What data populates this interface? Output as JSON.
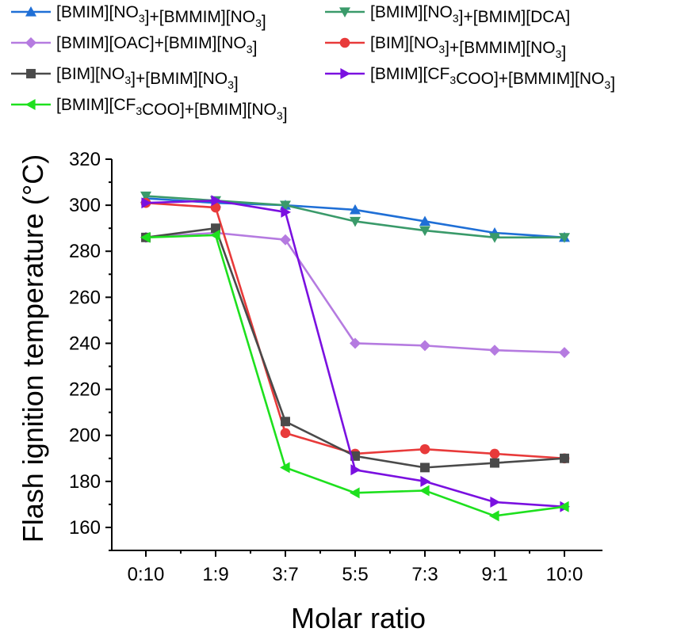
{
  "chart_data": {
    "type": "line",
    "xlabel": "Molar ratio",
    "ylabel": "Flash ignition temperature (°C)",
    "categories": [
      "0:10",
      "1:9",
      "3:7",
      "5:5",
      "7:3",
      "9:1",
      "10:0"
    ],
    "ylim": [
      150,
      320
    ],
    "yticks": [
      160,
      180,
      200,
      220,
      240,
      260,
      280,
      300,
      320
    ],
    "grid": false,
    "legend_position": "top",
    "series": [
      {
        "name": "[BMIM][NO3]+[BMMIM][NO3]",
        "color": "#1f6fd6",
        "marker": "triangle-up",
        "values": [
          303,
          301,
          300,
          298,
          293,
          288,
          286
        ]
      },
      {
        "name": "[BMIM][NO3]+[BMIM][DCA]",
        "color": "#3a9a6a",
        "marker": "triangle-down",
        "values": [
          304,
          302,
          300,
          293,
          289,
          286,
          286
        ]
      },
      {
        "name": "[BMIM][OAC]+[BMIM][NO3]",
        "color": "#b57be0",
        "marker": "diamond",
        "values": [
          286,
          288,
          285,
          240,
          239,
          237,
          236
        ]
      },
      {
        "name": "[BIM][NO3]+[BMMIM][NO3]",
        "color": "#e83a3a",
        "marker": "circle",
        "values": [
          301,
          299,
          201,
          192,
          194,
          192,
          190
        ]
      },
      {
        "name": "[BIM][NO3]+[BMIM][NO3]",
        "color": "#4a4a4a",
        "marker": "square",
        "values": [
          286,
          290,
          206,
          191,
          186,
          188,
          190
        ]
      },
      {
        "name": "[BMIM][CF3COO]+[BMMIM][NO3]",
        "color": "#7a10e0",
        "marker": "triangle-right",
        "values": [
          301,
          302,
          297,
          185,
          180,
          171,
          169
        ]
      },
      {
        "name": "[BMIM][CF3COO]+[BMIM][NO3]",
        "color": "#1ee01e",
        "marker": "triangle-left",
        "values": [
          286,
          287,
          186,
          175,
          176,
          165,
          169
        ]
      }
    ]
  },
  "legend_text": [
    {
      "parts": [
        [
          "[BMIM][NO",
          false
        ],
        [
          "3",
          true
        ],
        [
          "]+[BMMIM][NO",
          false
        ],
        [
          "3",
          true
        ],
        [
          "]",
          false
        ]
      ]
    },
    {
      "parts": [
        [
          "[BMIM][NO",
          false
        ],
        [
          "3",
          true
        ],
        [
          "]+[BMIM][DCA]",
          false
        ]
      ]
    },
    {
      "parts": [
        [
          "[BMIM][OAC]+[BMIM][NO",
          false
        ],
        [
          "3",
          true
        ],
        [
          "]",
          false
        ]
      ]
    },
    {
      "parts": [
        [
          "[BIM][NO",
          false
        ],
        [
          "3",
          true
        ],
        [
          "]+[BMMIM][NO",
          false
        ],
        [
          "3",
          true
        ],
        [
          "]",
          false
        ]
      ]
    },
    {
      "parts": [
        [
          "[BIM][NO",
          false
        ],
        [
          "3",
          true
        ],
        [
          "]+[BMIM][NO",
          false
        ],
        [
          "3",
          true
        ],
        [
          "]",
          false
        ]
      ]
    },
    {
      "parts": [
        [
          "[BMIM][CF",
          false
        ],
        [
          "3",
          true
        ],
        [
          "COO]+[BMMIM][NO",
          false
        ],
        [
          "3",
          true
        ],
        [
          "]",
          false
        ]
      ]
    },
    {
      "parts": [
        [
          "[BMIM][CF",
          false
        ],
        [
          "3",
          true
        ],
        [
          "COO]+[BMIM][NO",
          false
        ],
        [
          "3",
          true
        ],
        [
          "]",
          false
        ]
      ]
    }
  ]
}
